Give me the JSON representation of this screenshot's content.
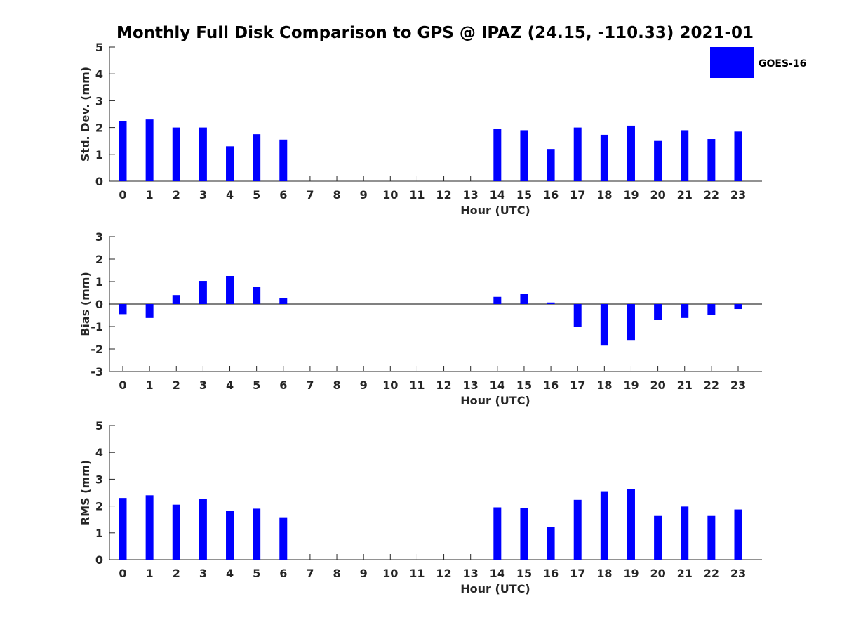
{
  "title": "Monthly Full Disk Comparison to GPS @ IPAZ (24.15, -110.33) 2021-01",
  "colors": {
    "bar": "#0000ff",
    "axis": "#262626",
    "text": "#000000"
  },
  "legend": {
    "label": "GOES-16",
    "placement": "top-right"
  },
  "chart_data": [
    {
      "type": "bar",
      "id": "stddev",
      "ylabel": "Std. Dev. (mm)",
      "xlabel": "Hour (UTC)",
      "ylim": [
        0,
        5
      ],
      "yticks": [
        0,
        1,
        2,
        3,
        4,
        5
      ],
      "categories": [
        0,
        1,
        2,
        3,
        4,
        5,
        6,
        7,
        8,
        9,
        10,
        11,
        12,
        13,
        14,
        15,
        16,
        17,
        18,
        19,
        20,
        21,
        22,
        23
      ],
      "series": [
        {
          "name": "GOES-16",
          "values": [
            2.25,
            2.3,
            2.0,
            2.0,
            1.3,
            1.75,
            1.55,
            null,
            null,
            null,
            null,
            null,
            null,
            null,
            1.95,
            1.9,
            1.2,
            2.0,
            1.73,
            2.07,
            1.5,
            1.9,
            1.57,
            1.85
          ]
        }
      ]
    },
    {
      "type": "bar",
      "id": "bias",
      "ylabel": "Bias (mm)",
      "xlabel": "Hour (UTC)",
      "ylim": [
        -3,
        3
      ],
      "yticks": [
        -3,
        -2,
        -1,
        0,
        1,
        2,
        3
      ],
      "categories": [
        0,
        1,
        2,
        3,
        4,
        5,
        6,
        7,
        8,
        9,
        10,
        11,
        12,
        13,
        14,
        15,
        16,
        17,
        18,
        19,
        20,
        21,
        22,
        23
      ],
      "series": [
        {
          "name": "GOES-16",
          "values": [
            -0.45,
            -0.62,
            0.4,
            1.03,
            1.25,
            0.75,
            0.25,
            null,
            null,
            null,
            null,
            null,
            null,
            null,
            0.32,
            0.45,
            0.07,
            -1.0,
            -1.85,
            -1.6,
            -0.7,
            -0.62,
            -0.5,
            -0.22
          ]
        }
      ]
    },
    {
      "type": "bar",
      "id": "rms",
      "ylabel": "RMS (mm)",
      "xlabel": "Hour (UTC)",
      "ylim": [
        0,
        5
      ],
      "yticks": [
        0,
        1,
        2,
        3,
        4,
        5
      ],
      "categories": [
        0,
        1,
        2,
        3,
        4,
        5,
        6,
        7,
        8,
        9,
        10,
        11,
        12,
        13,
        14,
        15,
        16,
        17,
        18,
        19,
        20,
        21,
        22,
        23
      ],
      "series": [
        {
          "name": "GOES-16",
          "values": [
            2.3,
            2.4,
            2.05,
            2.27,
            1.83,
            1.9,
            1.58,
            null,
            null,
            null,
            null,
            null,
            null,
            null,
            1.95,
            1.93,
            1.22,
            2.23,
            2.55,
            2.63,
            1.63,
            1.98,
            1.63,
            1.87
          ]
        }
      ]
    }
  ]
}
